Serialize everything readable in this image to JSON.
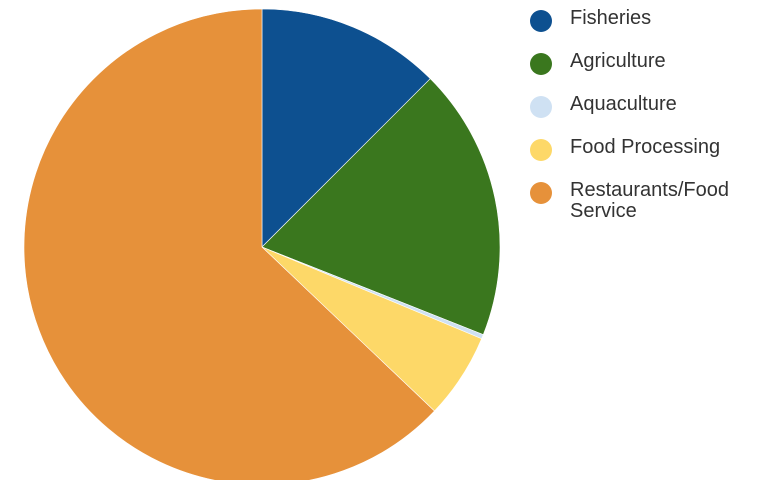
{
  "chart_data": {
    "type": "pie",
    "title": "",
    "start_angle_deg": 0,
    "direction": "clockwise",
    "legend_position": "top-right",
    "series": [
      {
        "name": "Fisheries",
        "value": 12.5,
        "color": "#0d5090"
      },
      {
        "name": "Agriculture",
        "value": 18.5,
        "color": "#3a771e"
      },
      {
        "name": "Aquaculture",
        "value": 0.3,
        "color": "#cfe1f3"
      },
      {
        "name": "Food Processing",
        "value": 5.8,
        "color": "#fdd868"
      },
      {
        "name": "Restaurants/Food Service",
        "value": 62.9,
        "color": "#e6913a"
      }
    ]
  }
}
